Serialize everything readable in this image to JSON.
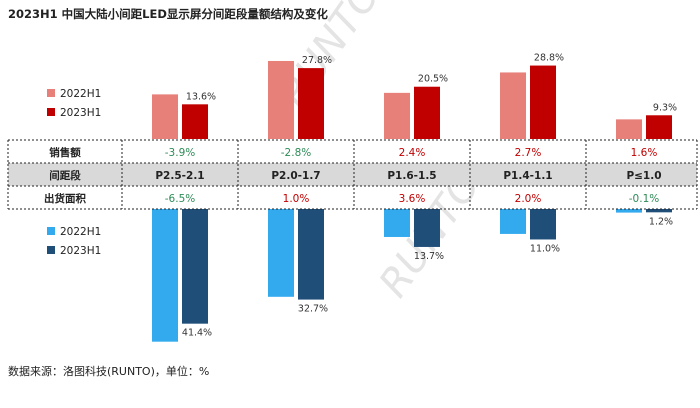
{
  "title": "2023H1 中国大陆小间距LED显示屏分间距段量额结构及变化",
  "source": "数据来源：洛图科技(RUNTO)，单位：%",
  "watermark": "RUNTO 洛图科技",
  "colors": {
    "sales_2022": "#e8807a",
    "sales_2023": "#c00000",
    "area_2022": "#33aaee",
    "area_2023": "#1f4e79",
    "pos_change": "#c00000",
    "neg_change": "#2e8b57",
    "header_bg": "#d9d9d9"
  },
  "chart_data": {
    "type": "bar",
    "categories": [
      "P2.5-2.1",
      "P2.0-1.7",
      "P1.6-1.5",
      "P1.4-1.1",
      "P≤1.0"
    ],
    "sales": {
      "legend": [
        "2022H1",
        "2023H1"
      ],
      "series": [
        {
          "name": "2022H1",
          "values": [
            17.5,
            30.6,
            18.1,
            26.1,
            7.7
          ]
        },
        {
          "name": "2023H1",
          "values": [
            13.6,
            27.8,
            20.5,
            28.8,
            9.3
          ]
        }
      ],
      "labels_2023": [
        "13.6%",
        "27.8%",
        "20.5%",
        "28.8%",
        "9.3%"
      ]
    },
    "area": {
      "legend": [
        "2022H1",
        "2023H1"
      ],
      "series": [
        {
          "name": "2022H1",
          "values": [
            47.9,
            31.7,
            10.1,
            9.0,
            1.3
          ]
        },
        {
          "name": "2023H1",
          "values": [
            41.4,
            32.7,
            13.7,
            11.0,
            1.2
          ]
        }
      ],
      "labels_2023": [
        "41.4%",
        "32.7%",
        "13.7%",
        "11.0%",
        "1.2%"
      ]
    },
    "table": {
      "row_labels": [
        "销售额",
        "间距段",
        "出货面积"
      ],
      "sales_change": [
        "-3.9%",
        "-2.8%",
        "2.4%",
        "2.7%",
        "1.6%"
      ],
      "area_change": [
        "-6.5%",
        "1.0%",
        "3.6%",
        "2.0%",
        "-0.1%"
      ]
    }
  }
}
